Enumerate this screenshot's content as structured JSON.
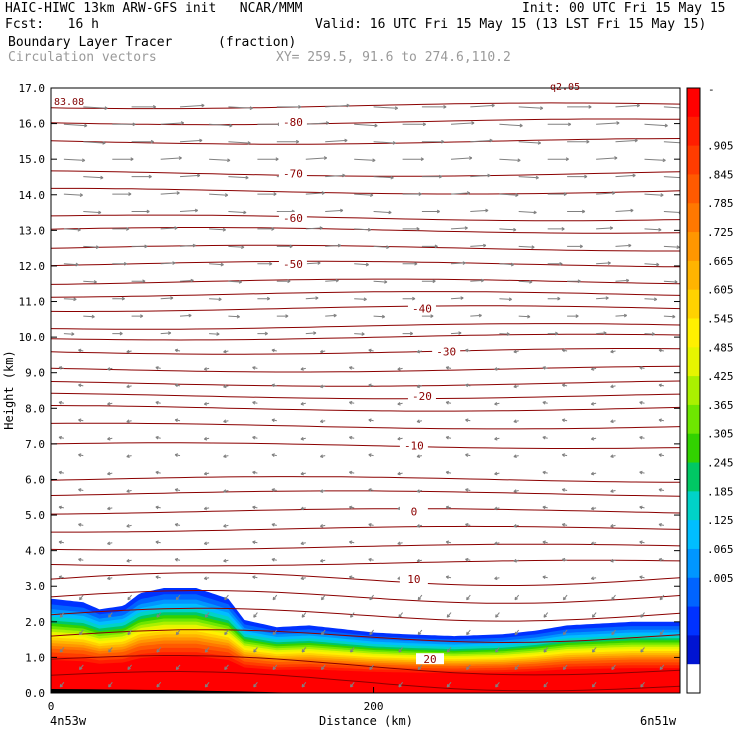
{
  "header": {
    "title_left": "HAIC-HIWC 13km ARW-GFS init   NCAR/MMM",
    "init": "Init: 00 UTC Fri 15 May 15",
    "fcst": "Fcst:   16 h",
    "valid": "Valid: 16 UTC Fri 15 May 15 (13 LST Fri 15 May 15)",
    "field": "Boundary Layer Tracer",
    "units": "(fraction)",
    "vectors": "Circulation vectors",
    "xy": "XY= 259.5, 91.6 to 274.6,110.2"
  },
  "chart_data": {
    "type": "heatmap",
    "ylabel": "Height (km)",
    "xlabel": "Distance (km)",
    "ylim": [
      0,
      17
    ],
    "xlim": [
      0,
      390
    ],
    "yticks": [
      "0.0",
      "1.0",
      "2.0",
      "3.0",
      "4.0",
      "5.0",
      "6.0",
      "7.0",
      "8.0",
      "9.0",
      "10.0",
      "11.0",
      "12.0",
      "13.0",
      "14.0",
      "15.0",
      "16.0",
      "17.0"
    ],
    "xticks": [
      {
        "value": 0,
        "label": "0"
      },
      {
        "value": 200,
        "label": "200"
      }
    ],
    "x_end_labels": {
      "left": "4n53w",
      "right": "6n51w"
    },
    "tracer_top_km": [
      [
        0,
        2.65
      ],
      [
        20,
        2.55
      ],
      [
        30,
        2.35
      ],
      [
        45,
        2.45
      ],
      [
        55,
        2.8
      ],
      [
        70,
        2.95
      ],
      [
        90,
        2.95
      ],
      [
        110,
        2.65
      ],
      [
        120,
        2.05
      ],
      [
        140,
        1.85
      ],
      [
        160,
        1.9
      ],
      [
        180,
        1.8
      ],
      [
        200,
        1.7
      ],
      [
        220,
        1.65
      ],
      [
        250,
        1.6
      ],
      [
        280,
        1.65
      ],
      [
        300,
        1.75
      ],
      [
        320,
        1.9
      ],
      [
        340,
        1.95
      ],
      [
        360,
        2.0
      ],
      [
        390,
        2.0
      ]
    ],
    "contours": [
      {
        "label": "-80",
        "km": 16.05,
        "lx": 150
      },
      {
        "label": "-70",
        "km": 14.6,
        "lx": 150
      },
      {
        "label": "-60",
        "km": 13.35,
        "lx": 150
      },
      {
        "label": "-50",
        "km": 12.05,
        "lx": 150
      },
      {
        "label": "-40",
        "km": 10.8,
        "lx": 230
      },
      {
        "label": "-30",
        "km": 9.6,
        "lx": 245
      },
      {
        "label": "-20",
        "km": 8.35,
        "lx": 230
      },
      {
        "label": "-10",
        "km": 6.95,
        "lx": 225
      },
      {
        "label": "0",
        "km": 5.1,
        "lx": 225
      },
      {
        "label": "10",
        "km": 3.2,
        "lx": 225
      },
      {
        "label": "20",
        "km": 0.95,
        "lx": 235
      }
    ],
    "extra_isotherms_km": [
      16.5,
      15.5,
      14.1,
      13.0,
      12.5,
      11.55,
      11.2,
      10.3,
      10.0,
      9.1,
      8.7,
      8.0,
      7.5,
      6.0,
      5.6,
      4.6,
      4.1,
      3.65,
      2.7,
      2.2,
      1.6,
      0.5
    ],
    "corner_labels": {
      "top_left": "83.08",
      "top_right": "q2.05"
    },
    "colorbar": {
      "labels": [
        ".905",
        ".845",
        ".785",
        ".725",
        ".665",
        ".605",
        ".545",
        ".485",
        ".425",
        ".365",
        ".305",
        ".245",
        ".185",
        ".125",
        ".065",
        ".005"
      ],
      "colors": [
        "#ff0000",
        "#ff1e00",
        "#ff3c00",
        "#ff5a00",
        "#ff7800",
        "#ff9600",
        "#ffb400",
        "#ffd200",
        "#fff000",
        "#e6f500",
        "#aaf000",
        "#6ee600",
        "#32d200",
        "#00c864",
        "#00d2c8",
        "#00beff",
        "#0096ff",
        "#0064ff",
        "#0032ff",
        "#0014d2",
        "#ffffff"
      ]
    },
    "legend": "right colorbar"
  }
}
